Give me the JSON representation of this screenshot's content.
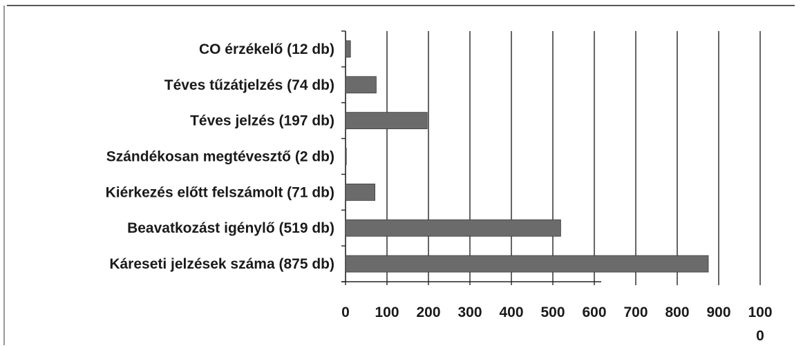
{
  "chart_data": {
    "type": "bar",
    "orientation": "horizontal",
    "categories": [
      "CO érzékelő (12 db)",
      "Téves tűzátjelzés (74 db)",
      "Téves jelzés (197 db)",
      "Szándékosan megtévesztő (2 db)",
      "Kiérkezés előtt felszámolt (71 db)",
      "Beavatkozást igénylő (519 db)",
      "Káreseti jelzések száma (875 db)"
    ],
    "values": [
      12,
      74,
      197,
      2,
      71,
      519,
      875
    ],
    "xlim": [
      0,
      1000
    ],
    "x_ticks": [
      0,
      100,
      200,
      300,
      400,
      500,
      600,
      700,
      800,
      900,
      1000
    ],
    "x_tick_labels": [
      "0",
      "100",
      "200",
      "300",
      "400",
      "500",
      "600",
      "700",
      "800",
      "900",
      "100\n0"
    ],
    "grid": "vertical",
    "legend": "none",
    "bar_color": "#6b6b6b"
  }
}
